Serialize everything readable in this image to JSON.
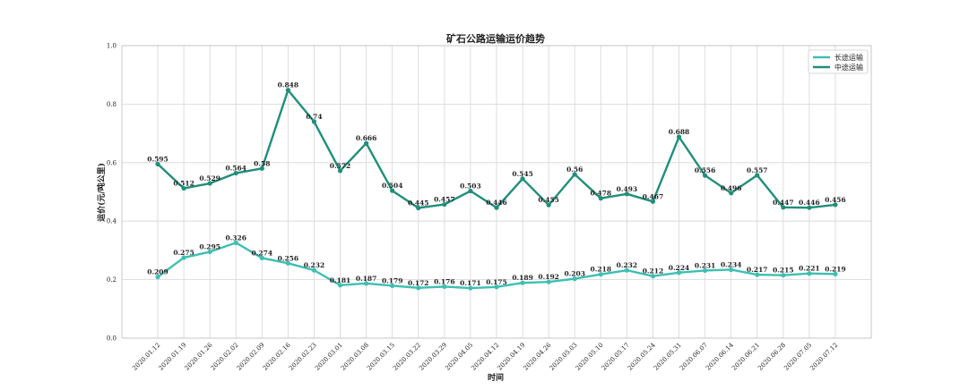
{
  "chart_data": {
    "type": "line",
    "title": "矿石公路运输运价趋势",
    "xlabel": "时间",
    "ylabel": "运价(元/吨公里)",
    "ylim": [
      0.0,
      1.0
    ],
    "yticks": [
      "0.0",
      "0.2",
      "0.4",
      "0.6",
      "0.8",
      "1.0"
    ],
    "grid": true,
    "legend_position": "top-right",
    "categories": [
      "2020.01.12",
      "2020.01.19",
      "2020.01.26",
      "2020.02.02",
      "2020.02.09",
      "2020.02.16",
      "2020.02.23",
      "2020.03.01",
      "2020.03.08",
      "2020.03.15",
      "2020.03.22",
      "2020.03.29",
      "2020.04.05",
      "2020.04.12",
      "2020.04.19",
      "2020.04.26",
      "2020.05.03",
      "2020.05.10",
      "2020.05.17",
      "2020.05.24",
      "2020.05.31",
      "2020.06.07",
      "2020.06.14",
      "2020.06.21",
      "2020.06.28",
      "2020.07.05",
      "2020.07.12"
    ],
    "series": [
      {
        "name": "长途运输",
        "color": "#3dbfb2",
        "values": [
          0.209,
          0.275,
          0.295,
          0.326,
          0.274,
          0.256,
          0.232,
          0.181,
          0.187,
          0.179,
          0.172,
          0.176,
          0.171,
          0.175,
          0.189,
          0.192,
          0.203,
          0.218,
          0.232,
          0.212,
          0.224,
          0.231,
          0.234,
          0.217,
          0.215,
          0.221,
          0.219
        ],
        "labels": [
          "0.209",
          "0.275",
          "0.295",
          "0.326",
          "0.274",
          "0.256",
          "0.232",
          "0.181",
          "0.187",
          "0.179",
          "0.172",
          "0.176",
          "0.171",
          "0.175",
          "0.189",
          "0.192",
          "0.203",
          "0.218",
          "0.232",
          "0.212",
          "0.224",
          "0.231",
          "0.234",
          "0.217",
          "0.215",
          "0.221",
          "0.219"
        ]
      },
      {
        "name": "中途运输",
        "color": "#1f8f7a",
        "values": [
          0.595,
          0.512,
          0.529,
          0.564,
          0.58,
          0.848,
          0.74,
          0.572,
          0.666,
          0.504,
          0.445,
          0.457,
          0.503,
          0.446,
          0.545,
          0.455,
          0.56,
          0.478,
          0.493,
          0.467,
          0.688,
          0.556,
          0.496,
          0.557,
          0.447,
          0.446,
          0.456
        ],
        "labels": [
          "0.595",
          "0.512",
          "0.529",
          "0.564",
          "0.58",
          "0.848",
          "0.74",
          "0.572",
          "0.666",
          "0.504",
          "0.445",
          "0.457",
          "0.503",
          "0.446",
          "0.545",
          "0.455",
          "0.56",
          "0.478",
          "0.493",
          "0.467",
          "0.688",
          "0.556",
          "0.496",
          "0.557",
          "0.447",
          "0.446",
          "0.456"
        ]
      }
    ]
  }
}
